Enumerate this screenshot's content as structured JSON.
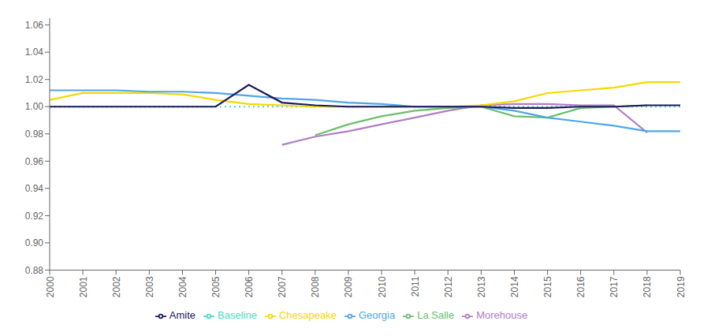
{
  "chart_data": {
    "type": "line",
    "x": [
      2000,
      2001,
      2002,
      2003,
      2004,
      2005,
      2006,
      2007,
      2008,
      2009,
      2010,
      2011,
      2012,
      2013,
      2014,
      2015,
      2016,
      2017,
      2018,
      2019
    ],
    "series": [
      {
        "name": "Baseline",
        "color": "#4dd9c0",
        "line_style": "dotted",
        "values": [
          1.0,
          1.0,
          1.0,
          1.0,
          1.0,
          1.0,
          1.0,
          1.0,
          1.0,
          1.0,
          1.0,
          1.0,
          1.0,
          1.0,
          1.0,
          1.0,
          1.0,
          1.0,
          1.0,
          1.0
        ]
      },
      {
        "name": "Morehouse",
        "color": "#b07cc6",
        "line_style": "solid",
        "values": [
          null,
          null,
          null,
          null,
          null,
          null,
          null,
          0.972,
          0.978,
          0.982,
          0.987,
          0.992,
          0.997,
          1.001,
          1.002,
          1.002,
          1.001,
          1.001,
          0.981,
          null
        ]
      },
      {
        "name": "La Salle",
        "color": "#6abf6a",
        "line_style": "solid",
        "values": [
          null,
          null,
          null,
          null,
          null,
          null,
          null,
          null,
          0.979,
          0.987,
          0.993,
          0.997,
          0.999,
          1.0,
          0.993,
          0.992,
          0.999,
          1.0,
          1.001,
          null
        ]
      },
      {
        "name": "Chesapeake",
        "color": "#f5d800",
        "line_style": "solid",
        "values": [
          1.005,
          1.01,
          1.01,
          1.01,
          1.009,
          1.005,
          1.002,
          1.001,
          1.0,
          1.0,
          1.0,
          1.0,
          1.0,
          1.001,
          1.004,
          1.01,
          1.012,
          1.014,
          1.018,
          1.018
        ]
      },
      {
        "name": "Georgia",
        "color": "#4da6e8",
        "line_style": "solid",
        "values": [
          1.012,
          1.012,
          1.012,
          1.011,
          1.011,
          1.01,
          1.008,
          1.006,
          1.005,
          1.003,
          1.002,
          1.0,
          1.0,
          1.0,
          0.997,
          0.992,
          0.989,
          0.986,
          0.982,
          0.982
        ]
      },
      {
        "name": "Amite",
        "color": "#1a1a5e",
        "line_style": "solid",
        "values": [
          1.0,
          1.0,
          1.0,
          1.0,
          1.0,
          1.0,
          1.016,
          1.003,
          1.001,
          1.0,
          1.0,
          1.0,
          1.0,
          1.0,
          0.999,
          0.999,
          1.0,
          1.0,
          1.001,
          1.001
        ]
      }
    ],
    "xlim": [
      2000,
      2019
    ],
    "xticks": [
      2000,
      2001,
      2002,
      2003,
      2004,
      2005,
      2006,
      2007,
      2008,
      2009,
      2010,
      2011,
      2012,
      2013,
      2014,
      2015,
      2016,
      2017,
      2018,
      2019
    ],
    "ylim": [
      0.88,
      1.065
    ],
    "yticks": [
      0.88,
      {
        "value": 0.9,
        "label": "0.90"
      },
      0.92,
      0.94,
      0.96,
      0.98,
      {
        "value": 1.0,
        "label": "1.00"
      },
      1.02,
      1.04,
      1.06
    ],
    "grid": false,
    "legend": "bottom"
  }
}
